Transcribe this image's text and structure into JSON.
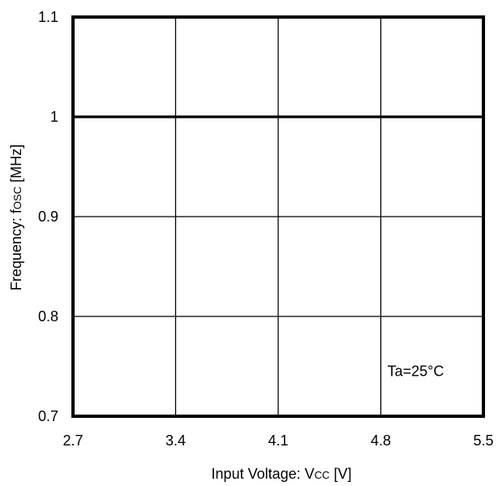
{
  "chart_data": {
    "type": "line",
    "title": "",
    "xlabel": {
      "main": "Input Voltage: V",
      "sub": "CC",
      "unit": " [V]"
    },
    "ylabel": {
      "main": "Frequency: f",
      "sub": "OSC",
      "unit": " [MHz]"
    },
    "xlim": [
      2.7,
      5.5
    ],
    "ylim": [
      0.7,
      1.1
    ],
    "x_ticks": [
      2.7,
      3.4,
      4.1,
      4.8,
      5.5
    ],
    "x_tick_labels": [
      "2.7",
      "3.4",
      "4.1",
      "4.8",
      "5.5"
    ],
    "y_ticks": [
      0.7,
      0.8,
      0.9,
      1.0,
      1.1
    ],
    "y_tick_labels": [
      "0.7",
      "0.8",
      "0.9",
      "1",
      "1.1"
    ],
    "grid": true,
    "series": [
      {
        "x": [
          2.7,
          3.4,
          4.1,
          4.8,
          5.5
        ],
        "y": [
          1.0,
          1.0,
          1.0,
          1.0,
          1.0
        ]
      }
    ],
    "annotations": [
      {
        "text": "Ta=25°C",
        "x": 4.8,
        "y": 0.745
      }
    ]
  }
}
